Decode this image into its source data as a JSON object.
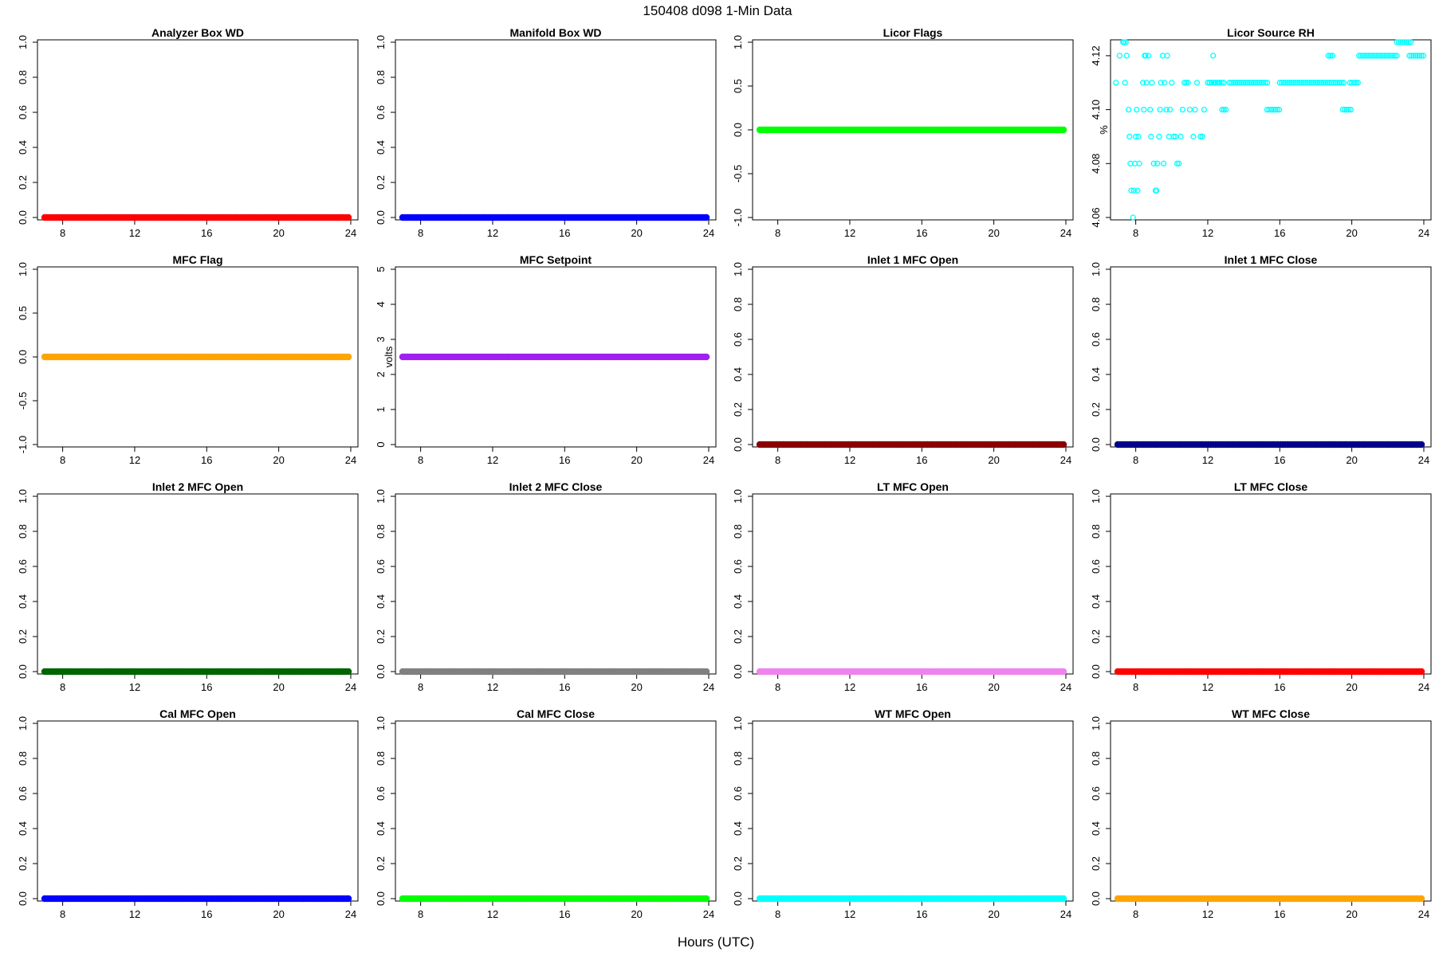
{
  "figure": {
    "title": "150408   d098   1-Min Data",
    "xlabel": "Hours (UTC)"
  },
  "chart_data": [
    {
      "type": "scatter",
      "title": "Analyzer Box WD",
      "ylabel": "",
      "color": "#ff0000",
      "xlim": [
        6.6,
        24.4
      ],
      "x_ticks": [
        8,
        12,
        16,
        20,
        24
      ],
      "ylim": [
        0,
        1
      ],
      "y_ticks": [
        "0.0",
        "0.2",
        "0.4",
        "0.6",
        "0.8",
        "1.0"
      ],
      "series": [
        {
          "x_start": 7,
          "x_end": 24,
          "y": 0
        }
      ]
    },
    {
      "type": "scatter",
      "title": "Manifold Box WD",
      "ylabel": "",
      "color": "#0000ff",
      "xlim": [
        6.6,
        24.4
      ],
      "x_ticks": [
        8,
        12,
        16,
        20,
        24
      ],
      "ylim": [
        0,
        1
      ],
      "y_ticks": [
        "0.0",
        "0.2",
        "0.4",
        "0.6",
        "0.8",
        "1.0"
      ],
      "series": [
        {
          "x_start": 7,
          "x_end": 24,
          "y": 0
        }
      ]
    },
    {
      "type": "scatter",
      "title": "Licor Flags",
      "ylabel": "",
      "color": "#00ff00",
      "xlim": [
        6.6,
        24.4
      ],
      "x_ticks": [
        8,
        12,
        16,
        20,
        24
      ],
      "ylim": [
        -1,
        1
      ],
      "y_ticks": [
        "-1.0",
        "-0.5",
        "0.0",
        "0.5",
        "1.0"
      ],
      "series": [
        {
          "x_start": 7,
          "x_end": 24,
          "y": 0
        }
      ]
    },
    {
      "type": "scatter",
      "title": "Licor Source RH",
      "ylabel": "%",
      "color": "#00ffff",
      "marker": "open-circle",
      "xlim": [
        6.6,
        24.4
      ],
      "x_ticks": [
        8,
        12,
        16,
        20,
        24
      ],
      "ylim": [
        4.06,
        4.125
      ],
      "y_ticks": [
        "4.06",
        "4.08",
        "4.10",
        "4.12"
      ],
      "points": [
        [
          6.9,
          4.11
        ],
        [
          7.1,
          4.12
        ],
        [
          7.3,
          4.125
        ],
        [
          7.35,
          4.125
        ],
        [
          7.45,
          4.125
        ],
        [
          7.4,
          4.11
        ],
        [
          7.5,
          4.12
        ],
        [
          7.6,
          4.1
        ],
        [
          7.65,
          4.09
        ],
        [
          7.7,
          4.08
        ],
        [
          7.75,
          4.07
        ],
        [
          7.85,
          4.06
        ],
        [
          7.9,
          4.07
        ],
        [
          7.95,
          4.08
        ],
        [
          8.0,
          4.09
        ],
        [
          8.05,
          4.1
        ],
        [
          8.1,
          4.07
        ],
        [
          8.15,
          4.09
        ],
        [
          8.2,
          4.08
        ],
        [
          8.4,
          4.11
        ],
        [
          8.45,
          4.1
        ],
        [
          8.5,
          4.12
        ],
        [
          8.55,
          4.12
        ],
        [
          8.6,
          4.11
        ],
        [
          8.7,
          4.12
        ],
        [
          8.8,
          4.1
        ],
        [
          8.85,
          4.09
        ],
        [
          8.9,
          4.11
        ],
        [
          9.0,
          4.08
        ],
        [
          9.1,
          4.07
        ],
        [
          9.15,
          4.07
        ],
        [
          9.2,
          4.08
        ],
        [
          9.3,
          4.09
        ],
        [
          9.35,
          4.1
        ],
        [
          9.4,
          4.11
        ],
        [
          9.5,
          4.12
        ],
        [
          9.55,
          4.08
        ],
        [
          9.6,
          4.11
        ],
        [
          9.7,
          4.1
        ],
        [
          9.75,
          4.12
        ],
        [
          9.85,
          4.09
        ],
        [
          9.9,
          4.1
        ],
        [
          10.0,
          4.11
        ],
        [
          10.1,
          4.09
        ],
        [
          10.2,
          4.09
        ],
        [
          10.3,
          4.08
        ],
        [
          10.4,
          4.08
        ],
        [
          10.5,
          4.09
        ],
        [
          10.6,
          4.1
        ],
        [
          10.7,
          4.11
        ],
        [
          10.8,
          4.11
        ],
        [
          10.9,
          4.11
        ],
        [
          11.0,
          4.1
        ],
        [
          11.2,
          4.09
        ],
        [
          11.3,
          4.1
        ],
        [
          11.4,
          4.11
        ],
        [
          11.6,
          4.09
        ],
        [
          11.7,
          4.09
        ],
        [
          11.8,
          4.1
        ],
        [
          12.1,
          4.11
        ],
        [
          12.3,
          4.12
        ],
        [
          12.4,
          4.11
        ],
        [
          12.6,
          4.11
        ],
        [
          12.8,
          4.1
        ],
        [
          12.9,
          4.1
        ],
        [
          13.0,
          4.1
        ]
      ],
      "runs": [
        {
          "y": 4.11,
          "x_start": 12.0,
          "x_end": 12.9
        },
        {
          "y": 4.11,
          "x_start": 13.2,
          "x_end": 15.4
        },
        {
          "y": 4.1,
          "x_start": 15.3,
          "x_end": 16.0
        },
        {
          "y": 4.11,
          "x_start": 16.0,
          "x_end": 18.9
        },
        {
          "y": 4.12,
          "x_start": 18.7,
          "x_end": 19.0
        },
        {
          "y": 4.11,
          "x_start": 19.0,
          "x_end": 19.6
        },
        {
          "y": 4.1,
          "x_start": 19.5,
          "x_end": 20.0
        },
        {
          "y": 4.11,
          "x_start": 19.9,
          "x_end": 20.4
        },
        {
          "y": 4.12,
          "x_start": 20.4,
          "x_end": 22.6
        },
        {
          "y": 4.125,
          "x_start": 22.5,
          "x_end": 23.3
        },
        {
          "y": 4.12,
          "x_start": 23.2,
          "x_end": 24.0
        }
      ]
    },
    {
      "type": "scatter",
      "title": "MFC Flag",
      "ylabel": "",
      "color": "#ffa500",
      "xlim": [
        6.6,
        24.4
      ],
      "x_ticks": [
        8,
        12,
        16,
        20,
        24
      ],
      "ylim": [
        -1,
        1
      ],
      "y_ticks": [
        "-1.0",
        "-0.5",
        "0.0",
        "0.5",
        "1.0"
      ],
      "series": [
        {
          "x_start": 7,
          "x_end": 24,
          "y": 0
        }
      ]
    },
    {
      "type": "scatter",
      "title": "MFC Setpoint",
      "ylabel": "volts",
      "color": "#a020f0",
      "xlim": [
        6.6,
        24.4
      ],
      "x_ticks": [
        8,
        12,
        16,
        20,
        24
      ],
      "ylim": [
        0,
        5
      ],
      "y_ticks": [
        "0",
        "1",
        "2",
        "3",
        "4",
        "5"
      ],
      "series": [
        {
          "x_start": 7,
          "x_end": 24,
          "y": 2.5
        }
      ]
    },
    {
      "type": "scatter",
      "title": "Inlet 1 MFC Open",
      "ylabel": "",
      "color": "#8b0000",
      "xlim": [
        6.6,
        24.4
      ],
      "x_ticks": [
        8,
        12,
        16,
        20,
        24
      ],
      "ylim": [
        0,
        1
      ],
      "y_ticks": [
        "0.0",
        "0.2",
        "0.4",
        "0.6",
        "0.8",
        "1.0"
      ],
      "series": [
        {
          "x_start": 7,
          "x_end": 24,
          "y": 0
        }
      ]
    },
    {
      "type": "scatter",
      "title": "Inlet 1 MFC Close",
      "ylabel": "",
      "color": "#00008b",
      "xlim": [
        6.6,
        24.4
      ],
      "x_ticks": [
        8,
        12,
        16,
        20,
        24
      ],
      "ylim": [
        0,
        1
      ],
      "y_ticks": [
        "0.0",
        "0.2",
        "0.4",
        "0.6",
        "0.8",
        "1.0"
      ],
      "series": [
        {
          "x_start": 7,
          "x_end": 24,
          "y": 0
        }
      ]
    },
    {
      "type": "scatter",
      "title": "Inlet 2 MFC Open",
      "ylabel": "",
      "color": "#006400",
      "xlim": [
        6.6,
        24.4
      ],
      "x_ticks": [
        8,
        12,
        16,
        20,
        24
      ],
      "ylim": [
        0,
        1
      ],
      "y_ticks": [
        "0.0",
        "0.2",
        "0.4",
        "0.6",
        "0.8",
        "1.0"
      ],
      "series": [
        {
          "x_start": 7,
          "x_end": 24,
          "y": 0
        }
      ]
    },
    {
      "type": "scatter",
      "title": "Inlet 2 MFC Close",
      "ylabel": "",
      "color": "#808080",
      "xlim": [
        6.6,
        24.4
      ],
      "x_ticks": [
        8,
        12,
        16,
        20,
        24
      ],
      "ylim": [
        0,
        1
      ],
      "y_ticks": [
        "0.0",
        "0.2",
        "0.4",
        "0.6",
        "0.8",
        "1.0"
      ],
      "series": [
        {
          "x_start": 7,
          "x_end": 24,
          "y": 0
        }
      ]
    },
    {
      "type": "scatter",
      "title": "LT MFC Open",
      "ylabel": "",
      "color": "#ee82ee",
      "xlim": [
        6.6,
        24.4
      ],
      "x_ticks": [
        8,
        12,
        16,
        20,
        24
      ],
      "ylim": [
        0,
        1
      ],
      "y_ticks": [
        "0.0",
        "0.2",
        "0.4",
        "0.6",
        "0.8",
        "1.0"
      ],
      "series": [
        {
          "x_start": 7,
          "x_end": 24,
          "y": 0
        }
      ]
    },
    {
      "type": "scatter",
      "title": "LT MFC Close",
      "ylabel": "",
      "color": "#ff0000",
      "xlim": [
        6.6,
        24.4
      ],
      "x_ticks": [
        8,
        12,
        16,
        20,
        24
      ],
      "ylim": [
        0,
        1
      ],
      "y_ticks": [
        "0.0",
        "0.2",
        "0.4",
        "0.6",
        "0.8",
        "1.0"
      ],
      "series": [
        {
          "x_start": 7,
          "x_end": 24,
          "y": 0
        }
      ]
    },
    {
      "type": "scatter",
      "title": "Cal MFC Open",
      "ylabel": "",
      "color": "#0000ff",
      "xlim": [
        6.6,
        24.4
      ],
      "x_ticks": [
        8,
        12,
        16,
        20,
        24
      ],
      "ylim": [
        0,
        1
      ],
      "y_ticks": [
        "0.0",
        "0.2",
        "0.4",
        "0.6",
        "0.8",
        "1.0"
      ],
      "series": [
        {
          "x_start": 7,
          "x_end": 24,
          "y": 0
        }
      ]
    },
    {
      "type": "scatter",
      "title": "Cal MFC Close",
      "ylabel": "",
      "color": "#00ff00",
      "xlim": [
        6.6,
        24.4
      ],
      "x_ticks": [
        8,
        12,
        16,
        20,
        24
      ],
      "ylim": [
        0,
        1
      ],
      "y_ticks": [
        "0.0",
        "0.2",
        "0.4",
        "0.6",
        "0.8",
        "1.0"
      ],
      "series": [
        {
          "x_start": 7,
          "x_end": 24,
          "y": 0
        }
      ]
    },
    {
      "type": "scatter",
      "title": "WT MFC Open",
      "ylabel": "",
      "color": "#00ffff",
      "xlim": [
        6.6,
        24.4
      ],
      "x_ticks": [
        8,
        12,
        16,
        20,
        24
      ],
      "ylim": [
        0,
        1
      ],
      "y_ticks": [
        "0.0",
        "0.2",
        "0.4",
        "0.6",
        "0.8",
        "1.0"
      ],
      "series": [
        {
          "x_start": 7,
          "x_end": 24,
          "y": 0
        }
      ]
    },
    {
      "type": "scatter",
      "title": "WT MFC Close",
      "ylabel": "",
      "color": "#ffa500",
      "xlim": [
        6.6,
        24.4
      ],
      "x_ticks": [
        8,
        12,
        16,
        20,
        24
      ],
      "ylim": [
        0,
        1
      ],
      "y_ticks": [
        "0.0",
        "0.2",
        "0.4",
        "0.6",
        "0.8",
        "1.0"
      ],
      "series": [
        {
          "x_start": 7,
          "x_end": 24,
          "y": 0
        }
      ]
    }
  ]
}
